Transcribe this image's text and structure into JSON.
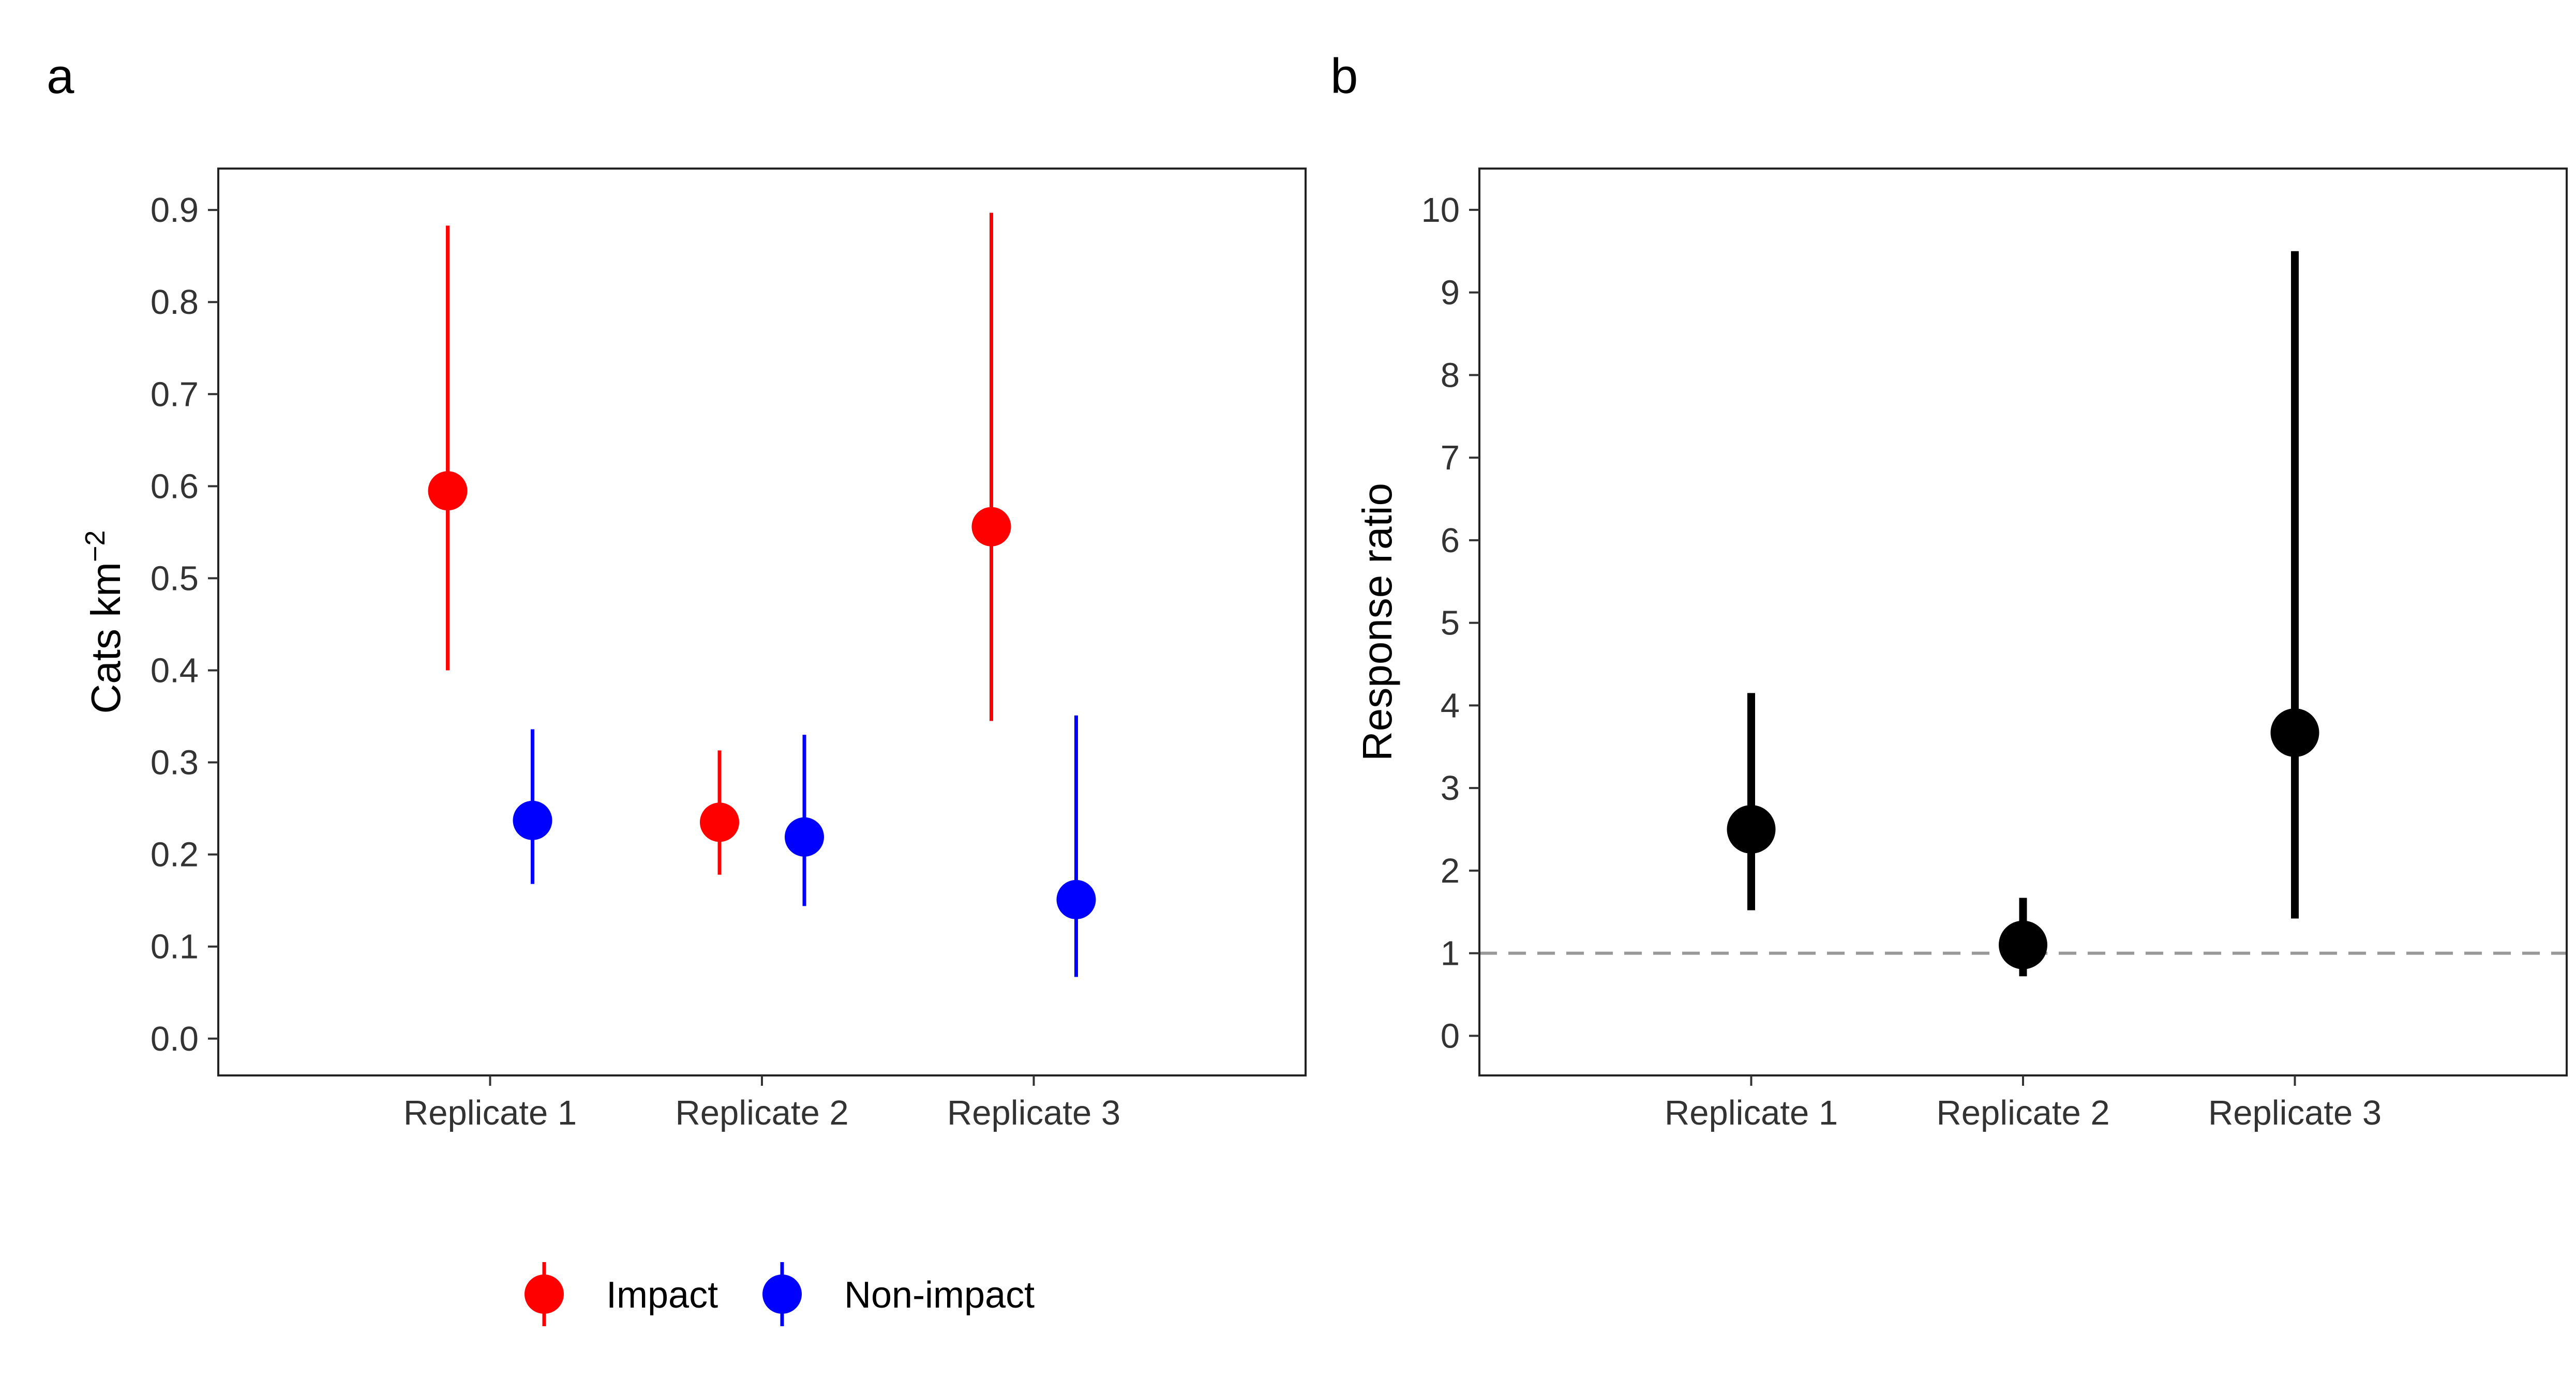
{
  "chart_data": [
    {
      "panel_label": "a",
      "type": "scatter",
      "subtype": "point-range",
      "categories": [
        "Replicate 1",
        "Replicate 2",
        "Replicate 3"
      ],
      "ylabel": "Cats km",
      "ylabel_superscript": "−2",
      "ylim": [
        -0.04,
        0.945
      ],
      "yticks": [
        "0.0",
        "0.1",
        "0.2",
        "0.3",
        "0.4",
        "0.5",
        "0.6",
        "0.7",
        "0.8",
        "0.9"
      ],
      "grid": false,
      "legend_position": "bottom",
      "series": [
        {
          "name": "Impact",
          "color": "#ff0000",
          "values": [
            0.595,
            0.235,
            0.556
          ],
          "lower": [
            0.4,
            0.178,
            0.345
          ],
          "upper": [
            0.883,
            0.313,
            0.897
          ]
        },
        {
          "name": "Non-impact",
          "color": "#0000ff",
          "values": [
            0.237,
            0.219,
            0.151
          ],
          "lower": [
            0.168,
            0.144,
            0.067
          ],
          "upper": [
            0.336,
            0.33,
            0.351
          ]
        }
      ]
    },
    {
      "panel_label": "b",
      "type": "scatter",
      "subtype": "point-range",
      "categories": [
        "Replicate 1",
        "Replicate 2",
        "Replicate 3"
      ],
      "ylabel": "Response ratio",
      "ylim": [
        -0.48,
        10.5
      ],
      "yticks": [
        "0",
        "1",
        "2",
        "3",
        "4",
        "5",
        "6",
        "7",
        "8",
        "9",
        "10"
      ],
      "grid": false,
      "reference_line": {
        "y": 1,
        "style": "dashed",
        "color": "#999999"
      },
      "series": [
        {
          "color": "#000000",
          "values": [
            2.5,
            1.1,
            3.67
          ],
          "lower": [
            1.52,
            0.72,
            1.42
          ],
          "upper": [
            4.15,
            1.67,
            9.5
          ]
        }
      ]
    }
  ]
}
